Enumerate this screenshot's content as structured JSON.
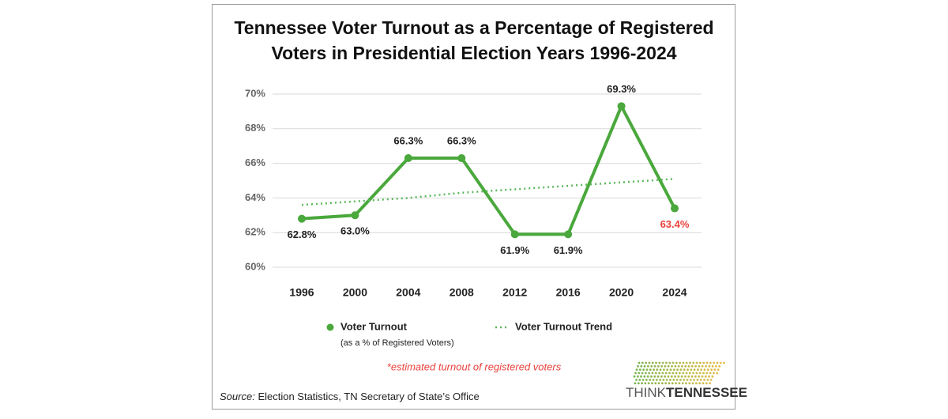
{
  "chart_data": {
    "type": "line",
    "title": [
      "Tennessee Voter Turnout as a Percentage of Registered",
      "Voters in Presidential Election Years 1996-2024"
    ],
    "categories": [
      "1996",
      "2000",
      "2004",
      "2008",
      "2012",
      "2016",
      "2020",
      "2024"
    ],
    "series": [
      {
        "name": "Voter Turnout",
        "color": "#4aa83c",
        "style": "solid",
        "values": [
          62.8,
          63.0,
          66.3,
          66.3,
          61.9,
          61.9,
          69.3,
          63.4
        ],
        "value_labels": [
          "62.8%",
          "63.0%",
          "66.3%",
          "66.3%",
          "61.9%",
          "61.9%",
          "69.3%",
          "63.4%"
        ],
        "value_label_colors": [
          "#222222",
          "#222222",
          "#222222",
          "#222222",
          "#222222",
          "#222222",
          "#222222",
          "#e8413c"
        ]
      },
      {
        "name": "Voter Turnout Trend",
        "color": "#5cb85c",
        "style": "dotted",
        "values": [
          63.6,
          63.8,
          64.0,
          64.3,
          64.5,
          64.7,
          64.9,
          65.1
        ]
      }
    ],
    "legend_note": "(as a % of Registered Voters)",
    "ylim": [
      60,
      70
    ],
    "yticks": [
      {
        "value": 60,
        "label": "60%"
      },
      {
        "value": 62,
        "label": "62%"
      },
      {
        "value": 64,
        "label": "64%"
      },
      {
        "value": 66,
        "label": "66%"
      },
      {
        "value": 68,
        "label": "68%"
      },
      {
        "value": 70,
        "label": "70%"
      }
    ],
    "grid": true,
    "footnote": "*estimated turnout of registered voters",
    "footnote_color": "#e8413c",
    "source_label": "Source:",
    "source": "Election Statistics, TN Secretary of State’s Office",
    "logo": [
      "THINK",
      "TENNESSEE"
    ]
  }
}
